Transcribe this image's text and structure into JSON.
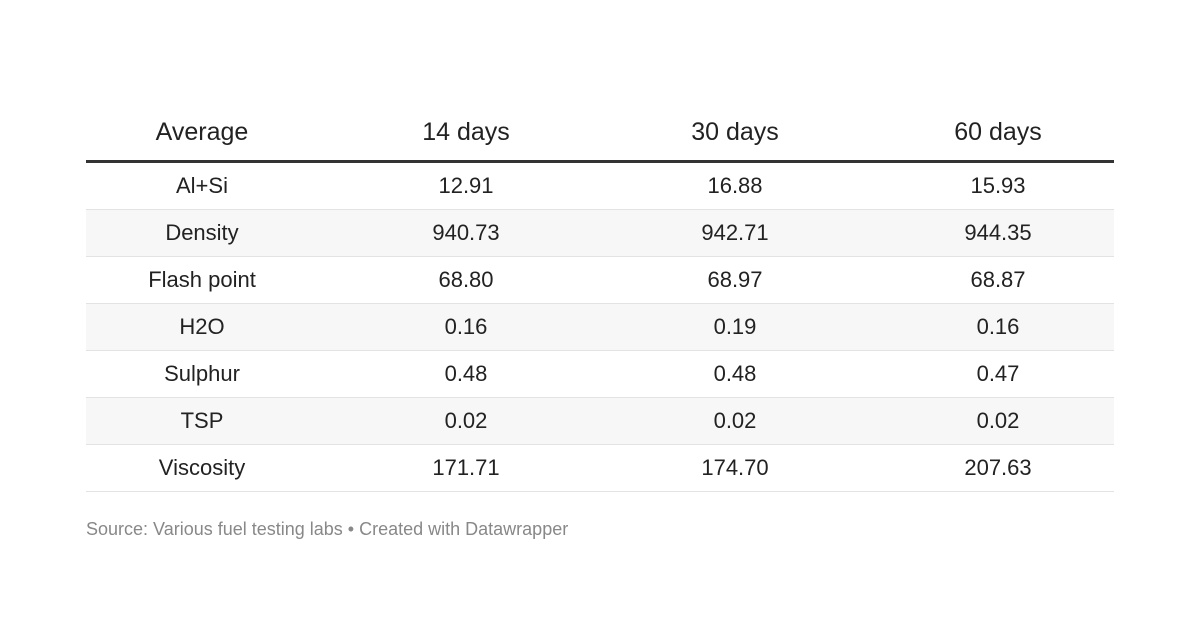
{
  "table": {
    "header": [
      "Average",
      "14 days",
      "30 days",
      "60 days"
    ],
    "rows": [
      [
        "Al+Si",
        "12.91",
        "16.88",
        "15.93"
      ],
      [
        "Density",
        "940.73",
        "942.71",
        "944.35"
      ],
      [
        "Flash point",
        "68.80",
        "68.97",
        "68.87"
      ],
      [
        "H2O",
        "0.16",
        "0.19",
        "0.16"
      ],
      [
        "Sulphur",
        "0.48",
        "0.48",
        "0.47"
      ],
      [
        "TSP",
        "0.02",
        "0.02",
        "0.02"
      ],
      [
        "Viscosity",
        "171.71",
        "174.70",
        "207.63"
      ]
    ]
  },
  "footer": "Source: Various fuel testing labs • Created with Datawrapper"
}
